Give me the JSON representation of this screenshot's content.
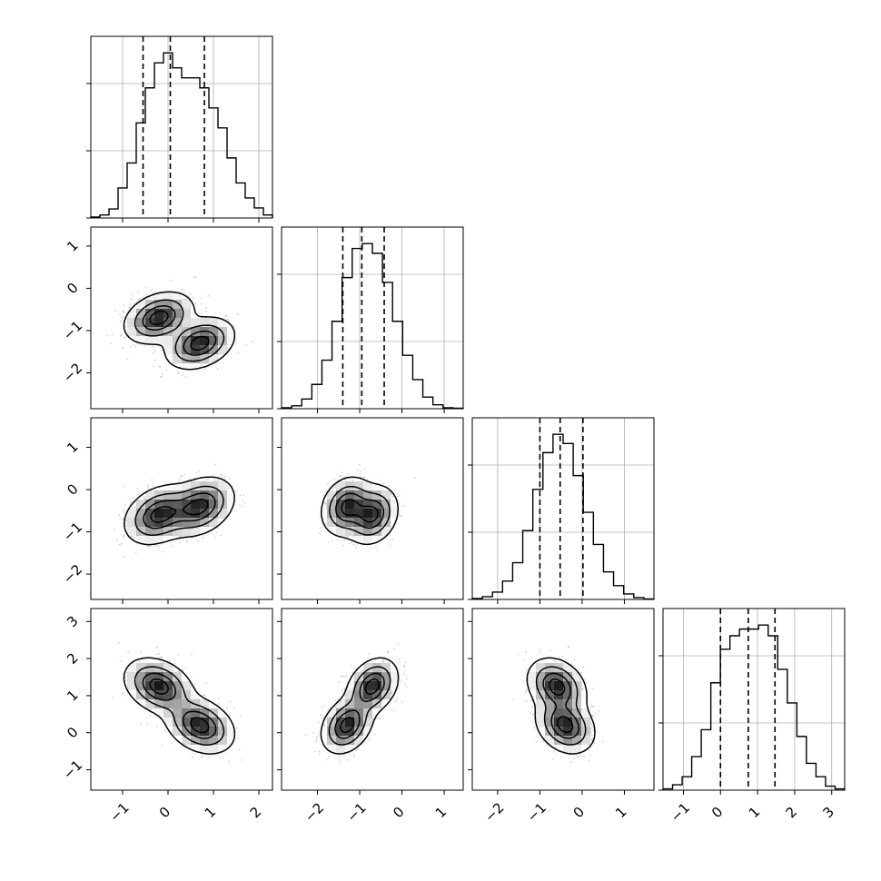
{
  "chart_data": {
    "type": "corner",
    "n_params": 4,
    "title": "",
    "grid": true,
    "axis_labels": [],
    "ranges": [
      [
        -1.7,
        2.3
      ],
      [
        -2.85,
        1.45
      ],
      [
        -2.6,
        1.7
      ],
      [
        -1.55,
        3.35
      ]
    ],
    "ticks": [
      [
        -1,
        0,
        1,
        2
      ],
      [
        -2,
        -1,
        0,
        1
      ],
      [
        -2,
        -1,
        0,
        1
      ],
      [
        -1,
        0,
        1,
        2,
        3
      ]
    ],
    "diag_ticks": [
      [
        -1,
        0,
        1,
        2
      ],
      [
        -2,
        -1,
        0,
        1
      ],
      [
        -2,
        -1,
        0,
        1
      ],
      [
        -1,
        0,
        1,
        2,
        3
      ]
    ],
    "quantiles": [
      [
        -0.55,
        0.05,
        0.8
      ],
      [
        -1.4,
        -0.95,
        -0.42
      ],
      [
        -1.0,
        -0.52,
        0.02
      ],
      [
        0.0,
        0.75,
        1.47
      ]
    ],
    "components": [
      {
        "weight": 0.5,
        "mean": [
          -0.2,
          -0.7,
          -0.6,
          1.25
        ],
        "sd": [
          0.35,
          0.28,
          0.32,
          0.35
        ],
        "corr": [
          [
            1,
            0.3,
            0.3,
            -0.3
          ],
          [
            0.3,
            1,
            0.2,
            0.3
          ],
          [
            0.3,
            0.2,
            1,
            -0.25
          ],
          [
            -0.3,
            0.3,
            -0.25,
            1
          ]
        ]
      },
      {
        "weight": 0.5,
        "mean": [
          0.7,
          -1.3,
          -0.4,
          0.2
        ],
        "sd": [
          0.35,
          0.28,
          0.32,
          0.35
        ],
        "corr": [
          [
            1,
            0.3,
            0.3,
            -0.3
          ],
          [
            0.3,
            1,
            0.2,
            0.3
          ],
          [
            0.3,
            0.2,
            1,
            -0.25
          ],
          [
            -0.3,
            0.3,
            -0.25,
            1
          ]
        ]
      }
    ],
    "histograms": [
      {
        "bins": [
          -1.7,
          2.3
        ],
        "counts": [
          0.1,
          0.3,
          0.9,
          3.0,
          5.5,
          9.5,
          13.0,
          15.5,
          16.5,
          15.0,
          14.0,
          14.0,
          13.0,
          11.0,
          9.0,
          6.0,
          3.5,
          2.0,
          1.0,
          0.3
        ]
      },
      {
        "bins": [
          -2.85,
          1.45
        ],
        "counts": [
          0.1,
          0.3,
          1.0,
          2.5,
          5.0,
          9.0,
          13.5,
          16.5,
          17.0,
          16.0,
          13.0,
          9.0,
          5.5,
          3.0,
          1.2,
          0.4,
          0.1,
          0.05
        ]
      },
      {
        "bins": [
          -2.6,
          1.7
        ],
        "counts": [
          0.1,
          0.3,
          0.8,
          2.0,
          4.0,
          7.5,
          12.0,
          16.0,
          18.0,
          17.0,
          13.5,
          9.5,
          6.0,
          3.0,
          1.5,
          0.6,
          0.2,
          0.05
        ]
      },
      {
        "bins": [
          -1.55,
          3.35
        ],
        "counts": [
          0.1,
          0.4,
          1.0,
          2.5,
          4.5,
          8.0,
          10.5,
          11.5,
          12.0,
          12.0,
          12.3,
          11.5,
          9.0,
          6.5,
          4.0,
          2.0,
          1.0,
          0.3,
          0.1
        ]
      }
    ]
  }
}
